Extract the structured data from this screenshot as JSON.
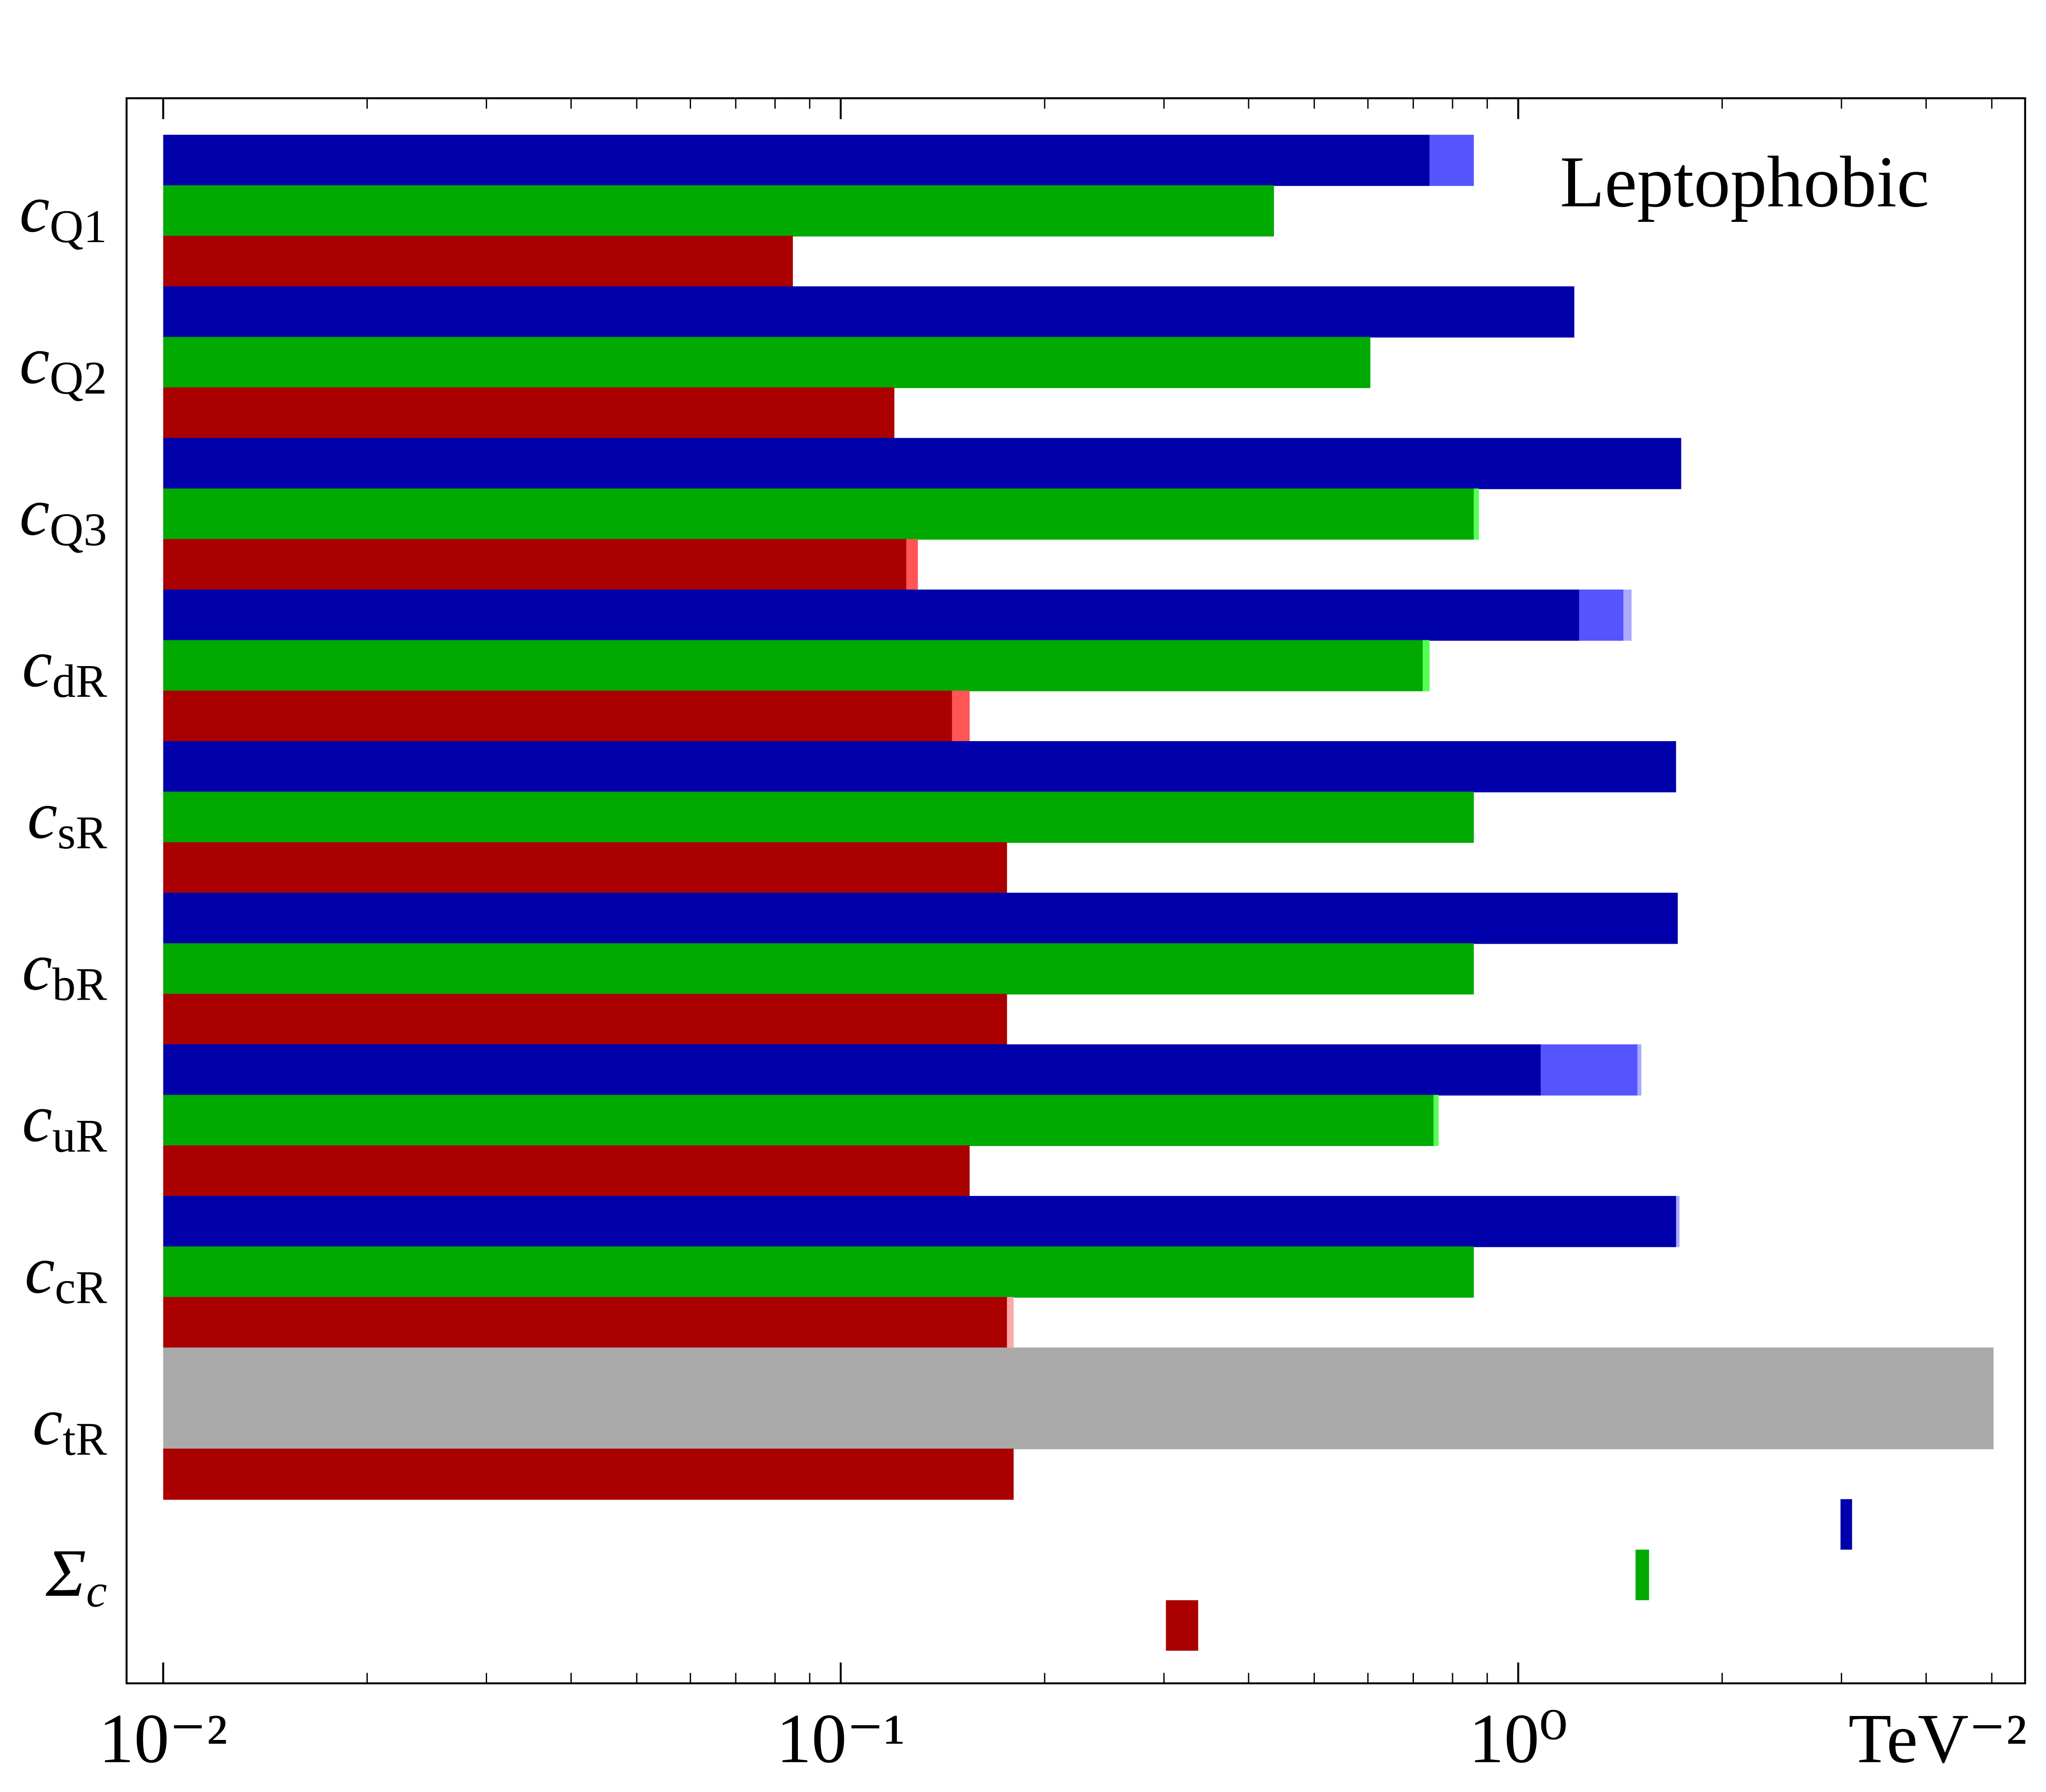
{
  "chart_data": {
    "type": "bar",
    "orientation": "horizontal",
    "annotation": "Leptophobic",
    "x_unit_label": "TeV⁻²",
    "categories": [
      {
        "main": "c",
        "sub": "Q1"
      },
      {
        "main": "c",
        "sub": "Q2"
      },
      {
        "main": "c",
        "sub": "Q3"
      },
      {
        "main": "c",
        "sub": "dR"
      },
      {
        "main": "c",
        "sub": "sR"
      },
      {
        "main": "c",
        "sub": "bR"
      },
      {
        "main": "c",
        "sub": "uR"
      },
      {
        "main": "c",
        "sub": "cR"
      },
      {
        "main": "c",
        "sub": "tR"
      },
      {
        "main": "Σ",
        "sub": "c"
      }
    ],
    "series": [
      {
        "color": "#0000aa",
        "light_color": "#5555ff",
        "lighter_color": "#aaaaff",
        "values": [
          0.74,
          1.21,
          1.74,
          1.23,
          1.71,
          1.72,
          1.08,
          1.71,
          null,
          null
        ],
        "ext": [
          0.86,
          null,
          null,
          1.43,
          null,
          null,
          1.5,
          null,
          null,
          null
        ],
        "ext2": [
          null,
          null,
          null,
          1.47,
          null,
          null,
          1.52,
          1.73,
          null,
          null
        ],
        "sum_range": [
          2.99,
          3.11
        ]
      },
      {
        "color": "#00aa00",
        "light_color": "#55ff55",
        "lighter_color": "#aaffaa",
        "values": [
          0.436,
          0.605,
          0.86,
          0.723,
          0.86,
          0.86,
          0.75,
          0.86,
          null,
          null
        ],
        "ext": [
          null,
          null,
          0.875,
          0.74,
          null,
          null,
          0.763,
          null,
          null,
          null
        ],
        "ext2": [
          null,
          null,
          null,
          null,
          null,
          null,
          null,
          null,
          null,
          null
        ],
        "sum_range": [
          1.49,
          1.56
        ]
      },
      {
        "color": "#aa0000",
        "light_color": "#ff5555",
        "lighter_color": "#ffaaaa",
        "values": [
          0.085,
          0.12,
          0.125,
          0.146,
          0.176,
          0.176,
          0.155,
          0.176,
          0.18,
          null
        ],
        "ext": [
          null,
          null,
          0.13,
          0.155,
          null,
          null,
          null,
          null,
          null,
          null
        ],
        "ext2": [
          null,
          null,
          null,
          null,
          null,
          null,
          null,
          0.18,
          null,
          null
        ],
        "sum_range": [
          0.302,
          0.337
        ]
      }
    ],
    "band": {
      "color": "#aaaaaa",
      "values": [
        null,
        null,
        null,
        null,
        null,
        null,
        null,
        null,
        5.03,
        null
      ]
    },
    "x_scale": "log",
    "xlim": [
      0.00883,
      5.6
    ],
    "xticks": [
      {
        "value": 0.01,
        "label": "10⁻²"
      },
      {
        "value": 0.1,
        "label": "10⁻¹"
      },
      {
        "value": 1,
        "label": "10⁰"
      }
    ],
    "minor_xticks": [
      0.02,
      0.03,
      0.04,
      0.05,
      0.06,
      0.07,
      0.08,
      0.09,
      0.2,
      0.3,
      0.4,
      0.5,
      0.6,
      0.7,
      0.8,
      0.9,
      2,
      3,
      4,
      5
    ]
  }
}
